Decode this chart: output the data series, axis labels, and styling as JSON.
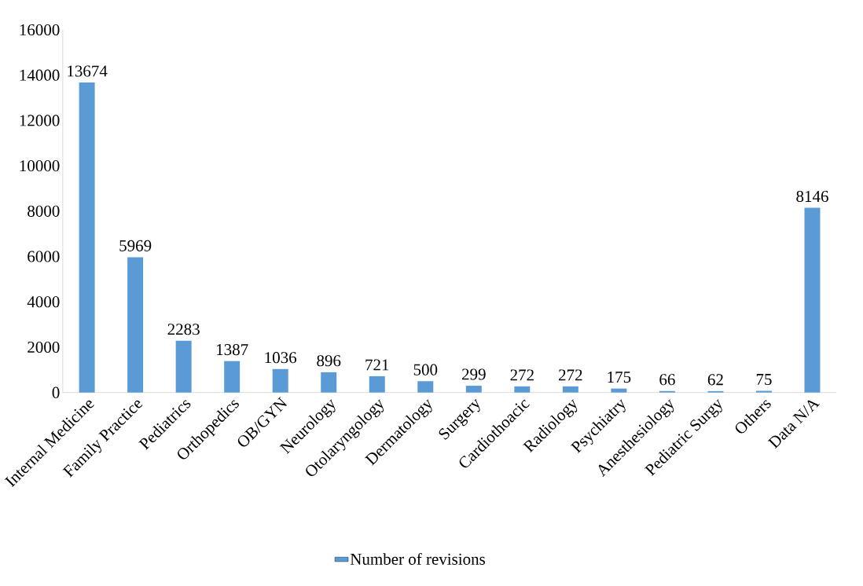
{
  "chart_data": {
    "type": "bar",
    "categories": [
      "Internal Medicine",
      "Family Practice",
      "Pediatrics",
      "Orthopedics",
      "OB/GYN",
      "Neurology",
      "Otolaryngology",
      "Dermatology",
      "Surgery",
      "Cardiothoacic",
      "Radiology",
      "Psychiatry",
      "Anesthesiology",
      "Pediatric Surgy",
      "Others",
      "Data N/A"
    ],
    "series": [
      {
        "name": "Number of revisions",
        "color": "#5b9bd5",
        "values": [
          13674,
          5969,
          2283,
          1387,
          1036,
          896,
          721,
          500,
          299,
          272,
          272,
          175,
          66,
          62,
          75,
          8146
        ]
      }
    ],
    "ylim": [
      0,
      16000
    ],
    "yticks": [
      0,
      2000,
      4000,
      6000,
      8000,
      10000,
      12000,
      14000,
      16000
    ],
    "data_labels": true,
    "legend": "bottom",
    "grid": false
  }
}
